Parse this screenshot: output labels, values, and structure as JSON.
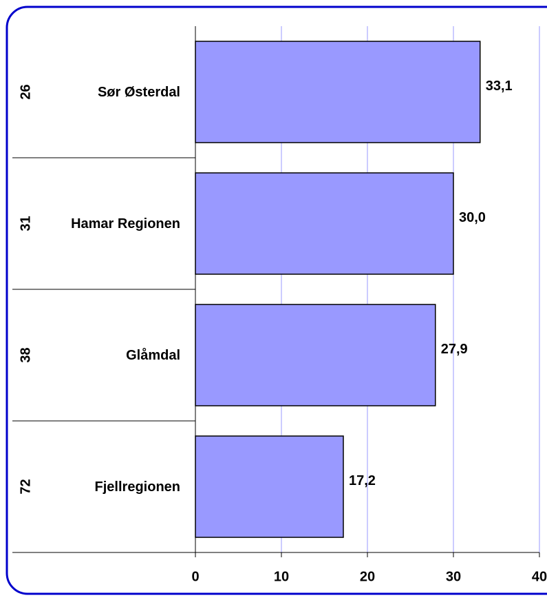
{
  "chart_data": {
    "type": "bar",
    "orientation": "horizontal",
    "categories": [
      "Sør Østerdal",
      "Hamar Regionen",
      "Glåmdal",
      "Fjellregionen"
    ],
    "ranks": [
      "26",
      "31",
      "38",
      "72"
    ],
    "values": [
      33.1,
      30.0,
      27.9,
      17.2
    ],
    "value_labels": [
      "33,1",
      "30,0",
      "27,9",
      "17,2"
    ],
    "color": "#9999ff",
    "xlim": [
      0,
      40
    ],
    "xticks": [
      0,
      10,
      20,
      30,
      40
    ],
    "grid": true
  }
}
